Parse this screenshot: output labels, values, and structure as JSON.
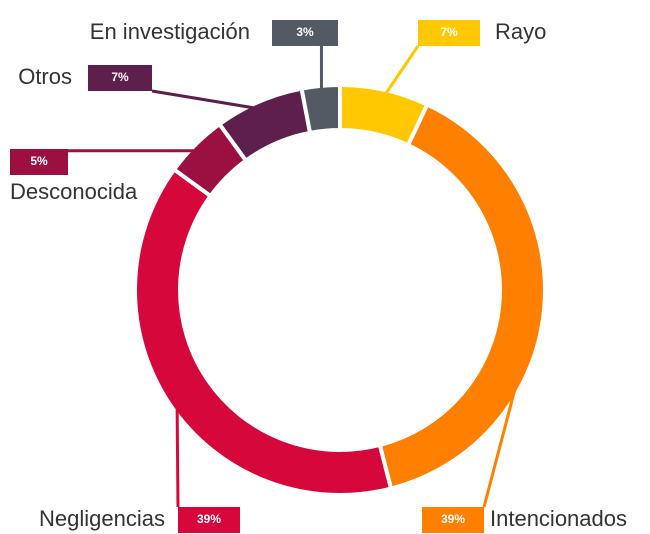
{
  "chart_data": {
    "type": "donut",
    "categories": [
      "Rayo",
      "Intencionados",
      "Negligencias",
      "Desconocida",
      "Otros",
      "En investigación"
    ],
    "values": [
      7,
      39,
      39,
      5,
      7,
      3
    ],
    "value_labels": [
      "7%",
      "39%",
      "39%",
      "5%",
      "7%",
      "3%"
    ],
    "colors": [
      "#ffc800",
      "#ff7f00",
      "#d6083b",
      "#9b1040",
      "#5e1f4d",
      "#545a63"
    ]
  }
}
